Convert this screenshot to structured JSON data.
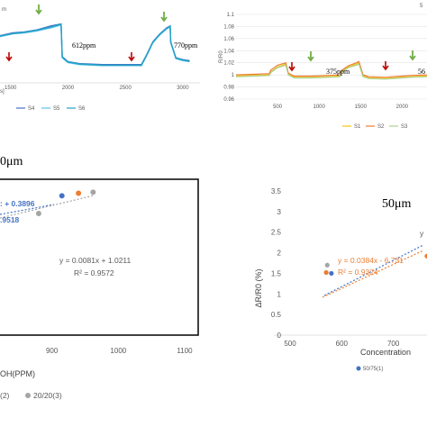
{
  "colors": {
    "blue": "#4472c4",
    "orange": "#ed7d31",
    "gray": "#a5a5a5",
    "teal": "#23a3c7",
    "lightblue": "#5bc0ea",
    "yellow": "#f5c518",
    "red": "#c00000",
    "green": "#70ad47"
  },
  "chart_data": [
    {
      "id": "tl",
      "type": "line",
      "title": "",
      "fragment": "m",
      "xlim": [
        1000,
        3150
      ],
      "ylim": [
        0.9,
        1.2
      ],
      "xticks": [
        1500,
        2000,
        2500,
        3000
      ],
      "unit_fragment": "s]",
      "series": [
        {
          "name": "S4",
          "x": [
            1000,
            1080,
            1110,
            1250,
            1400,
            1520,
            1620,
            1730,
            1850,
            1940,
            1950,
            2000,
            2100,
            2300,
            2500,
            2640,
            2690,
            2740,
            2800,
            2860,
            2890,
            2895,
            2940,
            3000,
            3060
          ],
          "y": [
            0.98,
            0.985,
            1.07,
            1.095,
            1.11,
            1.125,
            1.13,
            1.14,
            1.16,
            1.17,
            1.005,
            0.98,
            0.97,
            0.965,
            0.965,
            0.965,
            1.02,
            1.08,
            1.12,
            1.15,
            1.16,
            1.08,
            1.0,
            0.99,
            0.985
          ]
        },
        {
          "name": "S5",
          "x": [
            1000,
            1080,
            1110,
            1250,
            1400,
            1520,
            1620,
            1730,
            1850,
            1940,
            1950,
            2000,
            2100,
            2300,
            2500,
            2640,
            2690,
            2740,
            2800,
            2860,
            2890,
            2895,
            2940,
            3000,
            3060
          ],
          "y": [
            0.97,
            0.98,
            1.06,
            1.09,
            1.105,
            1.12,
            1.125,
            1.135,
            1.15,
            1.165,
            1.0,
            0.975,
            0.965,
            0.96,
            0.96,
            0.96,
            1.015,
            1.075,
            1.115,
            1.145,
            1.155,
            1.075,
            0.995,
            0.985,
            0.98
          ]
        },
        {
          "name": "S6",
          "x": [
            1000,
            1080,
            1110,
            1250,
            1400,
            1520,
            1620,
            1730,
            1850,
            1940,
            1950,
            2000,
            2100,
            2300,
            2500,
            2640,
            2690,
            2740,
            2800,
            2860,
            2890,
            2895,
            2940,
            3000,
            3060
          ],
          "y": [
            0.975,
            0.982,
            1.065,
            1.092,
            1.108,
            1.122,
            1.128,
            1.138,
            1.155,
            1.168,
            1.002,
            0.978,
            0.968,
            0.962,
            0.962,
            0.962,
            1.018,
            1.078,
            1.118,
            1.148,
            1.158,
            1.078,
            0.998,
            0.988,
            0.982
          ]
        }
      ],
      "annotations": [
        "612ppm",
        "770ppm"
      ]
    },
    {
      "id": "tr",
      "type": "line",
      "title": "",
      "ylabel": "R/R0",
      "fragment": "5",
      "xlim": [
        0,
        2300
      ],
      "ylim": [
        0.96,
        1.1
      ],
      "yticks": [
        0.96,
        0.98,
        1,
        1.02,
        1.04,
        1.06,
        1.08,
        1.1
      ],
      "xticks": [
        500,
        1000,
        1500,
        2000
      ],
      "series": [
        {
          "name": "S1",
          "x": [
            0,
            200,
            400,
            420,
            500,
            600,
            630,
            700,
            900,
            1100,
            1250,
            1270,
            1350,
            1450,
            1480,
            1530,
            1600,
            1800,
            2000,
            2100,
            2300
          ],
          "y": [
            0.998,
            0.999,
            1.0,
            1.005,
            1.013,
            1.018,
            1.001,
            0.996,
            0.996,
            0.997,
            0.998,
            1.005,
            1.013,
            1.018,
            1.02,
            0.998,
            0.995,
            0.994,
            0.996,
            0.997,
            0.998
          ]
        },
        {
          "name": "S2",
          "x": [
            0,
            200,
            400,
            420,
            500,
            600,
            630,
            700,
            900,
            1100,
            1250,
            1270,
            1350,
            1450,
            1480,
            1530,
            1600,
            1800,
            2000,
            2100,
            2300
          ],
          "y": [
            1.0,
            1.001,
            1.002,
            1.008,
            1.016,
            1.02,
            1.003,
            0.998,
            0.998,
            0.999,
            1.0,
            1.007,
            1.015,
            1.02,
            1.022,
            1.0,
            0.997,
            0.996,
            0.998,
            0.999,
            1.0
          ]
        },
        {
          "name": "S3",
          "x": [
            0,
            200,
            400,
            420,
            500,
            600,
            630,
            700,
            900,
            1100,
            1250,
            1270,
            1350,
            1450,
            1480,
            1530,
            1600,
            1800,
            2000,
            2100,
            2300
          ],
          "y": [
            0.997,
            0.998,
            0.999,
            1.004,
            1.012,
            1.016,
            1.0,
            0.995,
            0.995,
            0.996,
            0.997,
            1.004,
            1.012,
            1.016,
            1.018,
            0.997,
            0.994,
            0.993,
            0.995,
            0.996,
            0.997
          ]
        }
      ],
      "annotations": [
        "375ppm",
        "56"
      ]
    },
    {
      "id": "bl",
      "type": "scatter",
      "title": "0μm",
      "xlabel": "OH(PPM)",
      "xlim": [
        800,
        1100
      ],
      "ylim": [
        0,
        3.2
      ],
      "xticks": [
        900,
        1000,
        1100
      ],
      "series": [
        {
          "name": "(2)",
          "color_key": "orange",
          "x": [
            940
          ],
          "y": [
            2.8
          ]
        },
        {
          "name": "20/20(3)",
          "color_key": "gray",
          "x": [
            880,
            962
          ],
          "y": [
            2.4,
            2.82
          ]
        },
        {
          "name": "",
          "color_key": "blue",
          "x": [
            915
          ],
          "y": [
            2.75
          ]
        }
      ],
      "trend_labels": [
        ": + 0.3896",
        ".9518",
        "y = 0.0081x + 1.0211",
        "R² = 0.9572"
      ]
    },
    {
      "id": "br",
      "type": "scatter",
      "title": "50μm",
      "ylabel": "ΔR/R0 (%)",
      "xlabel": "Concentration",
      "xlim": [
        500,
        800
      ],
      "ylim": [
        0,
        3.5
      ],
      "xticks": [
        500,
        600,
        700
      ],
      "yticks": [
        0,
        0.5,
        1,
        1.5,
        2,
        2.5,
        3,
        3.5
      ],
      "series": [
        {
          "name": "50/75(1)",
          "color_key": "blue",
          "x": [
            580,
            770
          ],
          "y": [
            1.5,
            2.05
          ]
        },
        {
          "name": "",
          "color_key": "orange",
          "x": [
            570,
            765
          ],
          "y": [
            1.52,
            1.92
          ]
        },
        {
          "name": "",
          "color_key": "gray",
          "x": [
            572
          ],
          "y": [
            1.7
          ]
        }
      ],
      "trend_labels": [
        "y = 0.0384x - 6.731",
        "R² = 0.9324",
        "y"
      ]
    }
  ]
}
